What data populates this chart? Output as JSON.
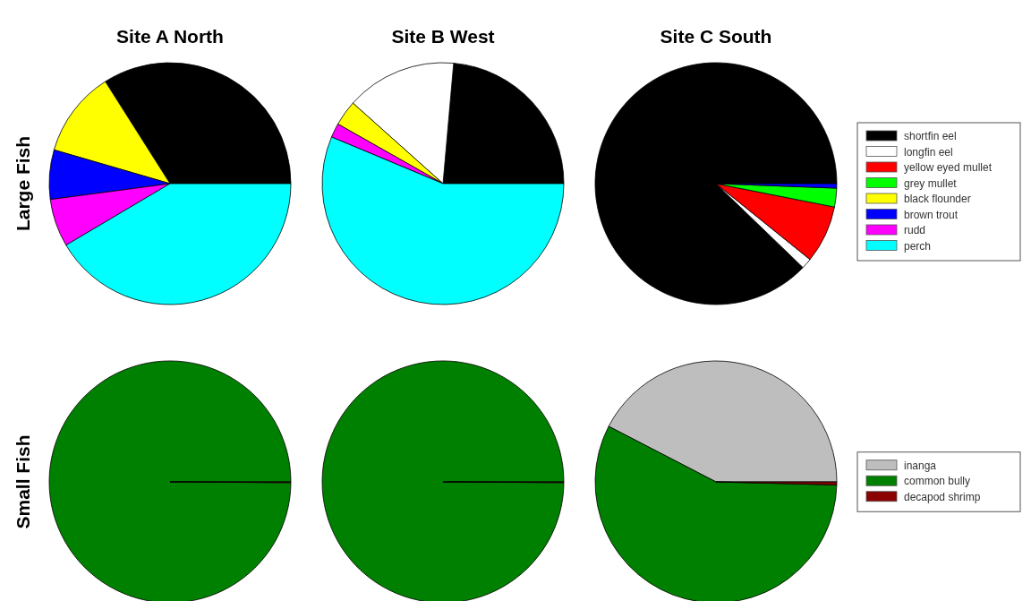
{
  "chart_data": [
    {
      "type": "pie",
      "title": "Site A North",
      "ylabel": "Large Fish",
      "categories": [
        "shortfin eel",
        "longfin eel",
        "yellow eyed mullet",
        "grey mullet",
        "black flounder",
        "brown trout",
        "rudd",
        "perch"
      ],
      "values": [
        34,
        0,
        0,
        0,
        11.5,
        6.6,
        6.4,
        41.5
      ],
      "colors": [
        "#000000",
        "#ffffff",
        "#ff0000",
        "#00ff00",
        "#ffff00",
        "#0000ff",
        "#ff00ff",
        "#00ffff"
      ],
      "legend": "right"
    },
    {
      "type": "pie",
      "title": "Site B West",
      "categories": [
        null,
        null,
        null,
        null,
        null,
        null,
        null,
        null
      ],
      "values": [
        23.6,
        14.8,
        0,
        0,
        3.4,
        0,
        1.9,
        56.3
      ],
      "colors": [
        "#000000",
        "#ffffff",
        "#ff0000",
        "#00ff00",
        "#ffff00",
        "#0000ff",
        "#ff00ff",
        "#00ffff"
      ],
      "legend": false
    },
    {
      "type": "pie",
      "title": "Site C South",
      "categories": [
        null,
        null,
        null,
        null,
        null,
        null,
        null,
        null
      ],
      "values": [
        87.8,
        1.4,
        7.7,
        2.5,
        0,
        0.6,
        0,
        0
      ],
      "colors": [
        "#000000",
        "#ffffff",
        "#ff0000",
        "#00ff00",
        "#ffff00",
        "#0000ff",
        "#ff00ff",
        "#00ffff"
      ],
      "legend": false
    },
    {
      "type": "pie",
      "ylabel": "Small Fish",
      "categories": [
        "inanga",
        "common bully",
        "decapod shrimp"
      ],
      "values": [
        0,
        99.9,
        0.1
      ],
      "colors": [
        "#bebebe",
        "#008000",
        "#8b0000"
      ],
      "legend": "right"
    },
    {
      "type": "pie",
      "categories": [
        null,
        null,
        null
      ],
      "values": [
        0,
        99.9,
        0.1
      ],
      "colors": [
        "#bebebe",
        "#008000",
        "#8b0000"
      ],
      "legend": false
    },
    {
      "type": "pie",
      "categories": [
        null,
        null,
        null
      ],
      "values": [
        42.4,
        57.2,
        0.4
      ],
      "colors": [
        "#bebebe",
        "#008000",
        "#8b0000"
      ],
      "legend": false
    }
  ]
}
